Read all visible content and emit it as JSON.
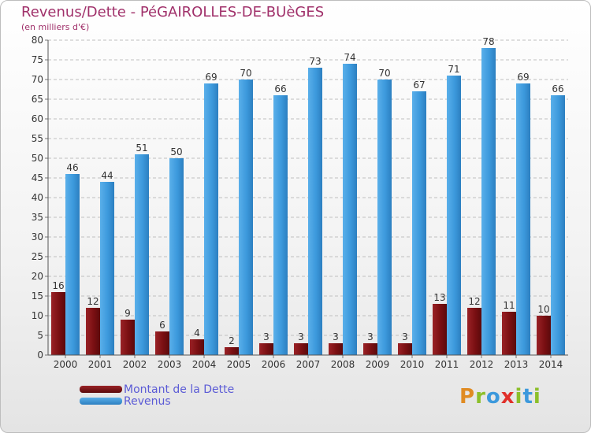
{
  "header": {
    "title": "Revenus/Dette - PéGAIROLLES-DE-BUèGES",
    "subtitle": "(en milliers d'€)"
  },
  "legend": {
    "debt_label": "Montant de la Dette",
    "revenue_label": "Revenus"
  },
  "logo": {
    "letters": [
      "P",
      "r",
      "o",
      "x",
      "i",
      "t",
      "i"
    ]
  },
  "colors": {
    "debt": "#7a0f12",
    "revenue": "#3c99dc",
    "title": "#a0306a",
    "legend_text": "#5b5bd6",
    "grid": "#bfbfbf",
    "logo": [
      "#e08b22",
      "#8cbf2a",
      "#3c99dc",
      "#e0302a",
      "#8cbf2a",
      "#3c99dc",
      "#8cbf2a"
    ]
  },
  "chart_data": {
    "type": "bar",
    "title": "Revenus/Dette - PéGAIROLLES-DE-BUèGES",
    "ylabel": "(en milliers d'€)",
    "categories": [
      "2000",
      "2001",
      "2002",
      "2003",
      "2004",
      "2005",
      "2006",
      "2007",
      "2008",
      "2009",
      "2010",
      "2011",
      "2012",
      "2013",
      "2014"
    ],
    "series": [
      {
        "name": "Montant de la Dette",
        "values": [
          16,
          12,
          9,
          6,
          4,
          2,
          3,
          3,
          3,
          3,
          3,
          13,
          12,
          11,
          10
        ]
      },
      {
        "name": "Revenus",
        "values": [
          46,
          44,
          51,
          50,
          69,
          70,
          66,
          73,
          74,
          70,
          67,
          71,
          78,
          69,
          66
        ]
      }
    ],
    "ylim": [
      0,
      80
    ],
    "yticks": [
      0,
      5,
      10,
      15,
      20,
      25,
      30,
      35,
      40,
      45,
      50,
      55,
      60,
      65,
      70,
      75,
      80
    ],
    "grid": true,
    "legend_position": "bottom-left"
  }
}
